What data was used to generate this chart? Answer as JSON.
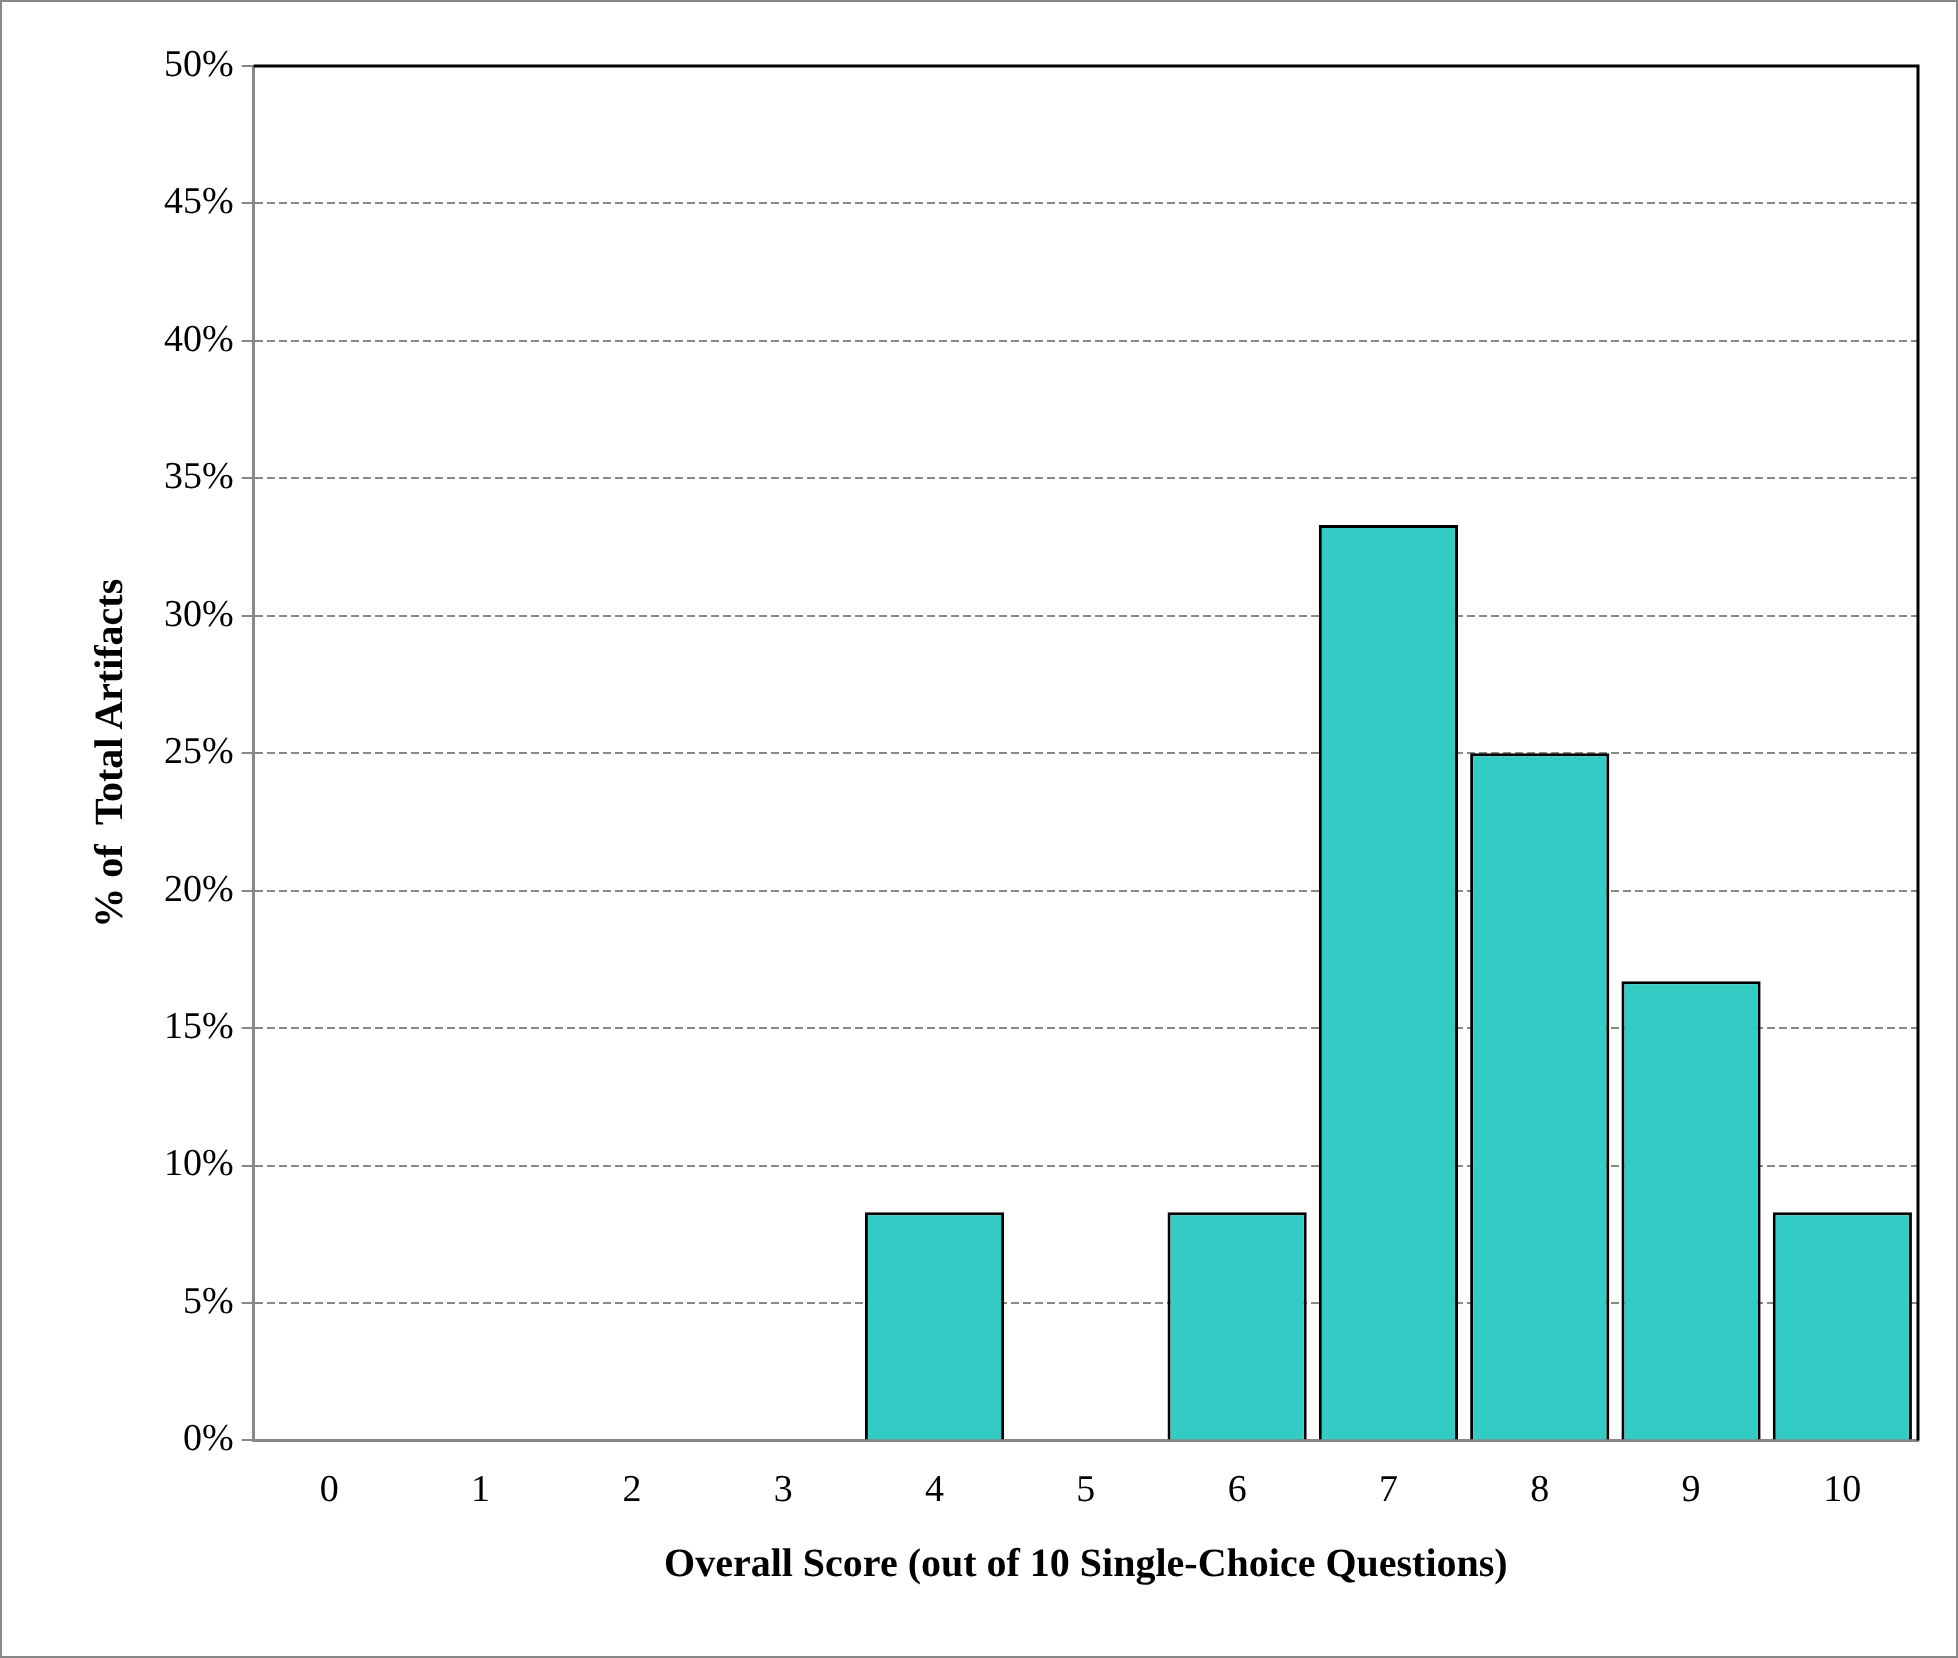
{
  "chart_data": {
    "type": "bar",
    "xlabel": "Overall Score (out of 10 Single-Choice Questions)",
    "ylabel": "% of  Total Artifacts",
    "categories": [
      "0",
      "1",
      "2",
      "3",
      "4",
      "5",
      "6",
      "7",
      "8",
      "9",
      "10"
    ],
    "values": [
      0,
      0,
      0,
      0,
      8.3,
      0,
      8.3,
      33.3,
      25,
      16.7,
      8.3
    ],
    "color": "#33ccc4",
    "ylim": [
      0,
      50
    ],
    "yticks": [
      {
        "value": 0,
        "label": "0%"
      },
      {
        "value": 5,
        "label": "5%"
      },
      {
        "value": 10,
        "label": "10%"
      },
      {
        "value": 15,
        "label": "15%"
      },
      {
        "value": 20,
        "label": "20%"
      },
      {
        "value": 25,
        "label": "25%"
      },
      {
        "value": 30,
        "label": "30%"
      },
      {
        "value": 35,
        "label": "35%"
      },
      {
        "value": 40,
        "label": "40%"
      },
      {
        "value": 45,
        "label": "45%"
      },
      {
        "value": 50,
        "label": "50%"
      }
    ],
    "grid": "y",
    "legend": false
  }
}
